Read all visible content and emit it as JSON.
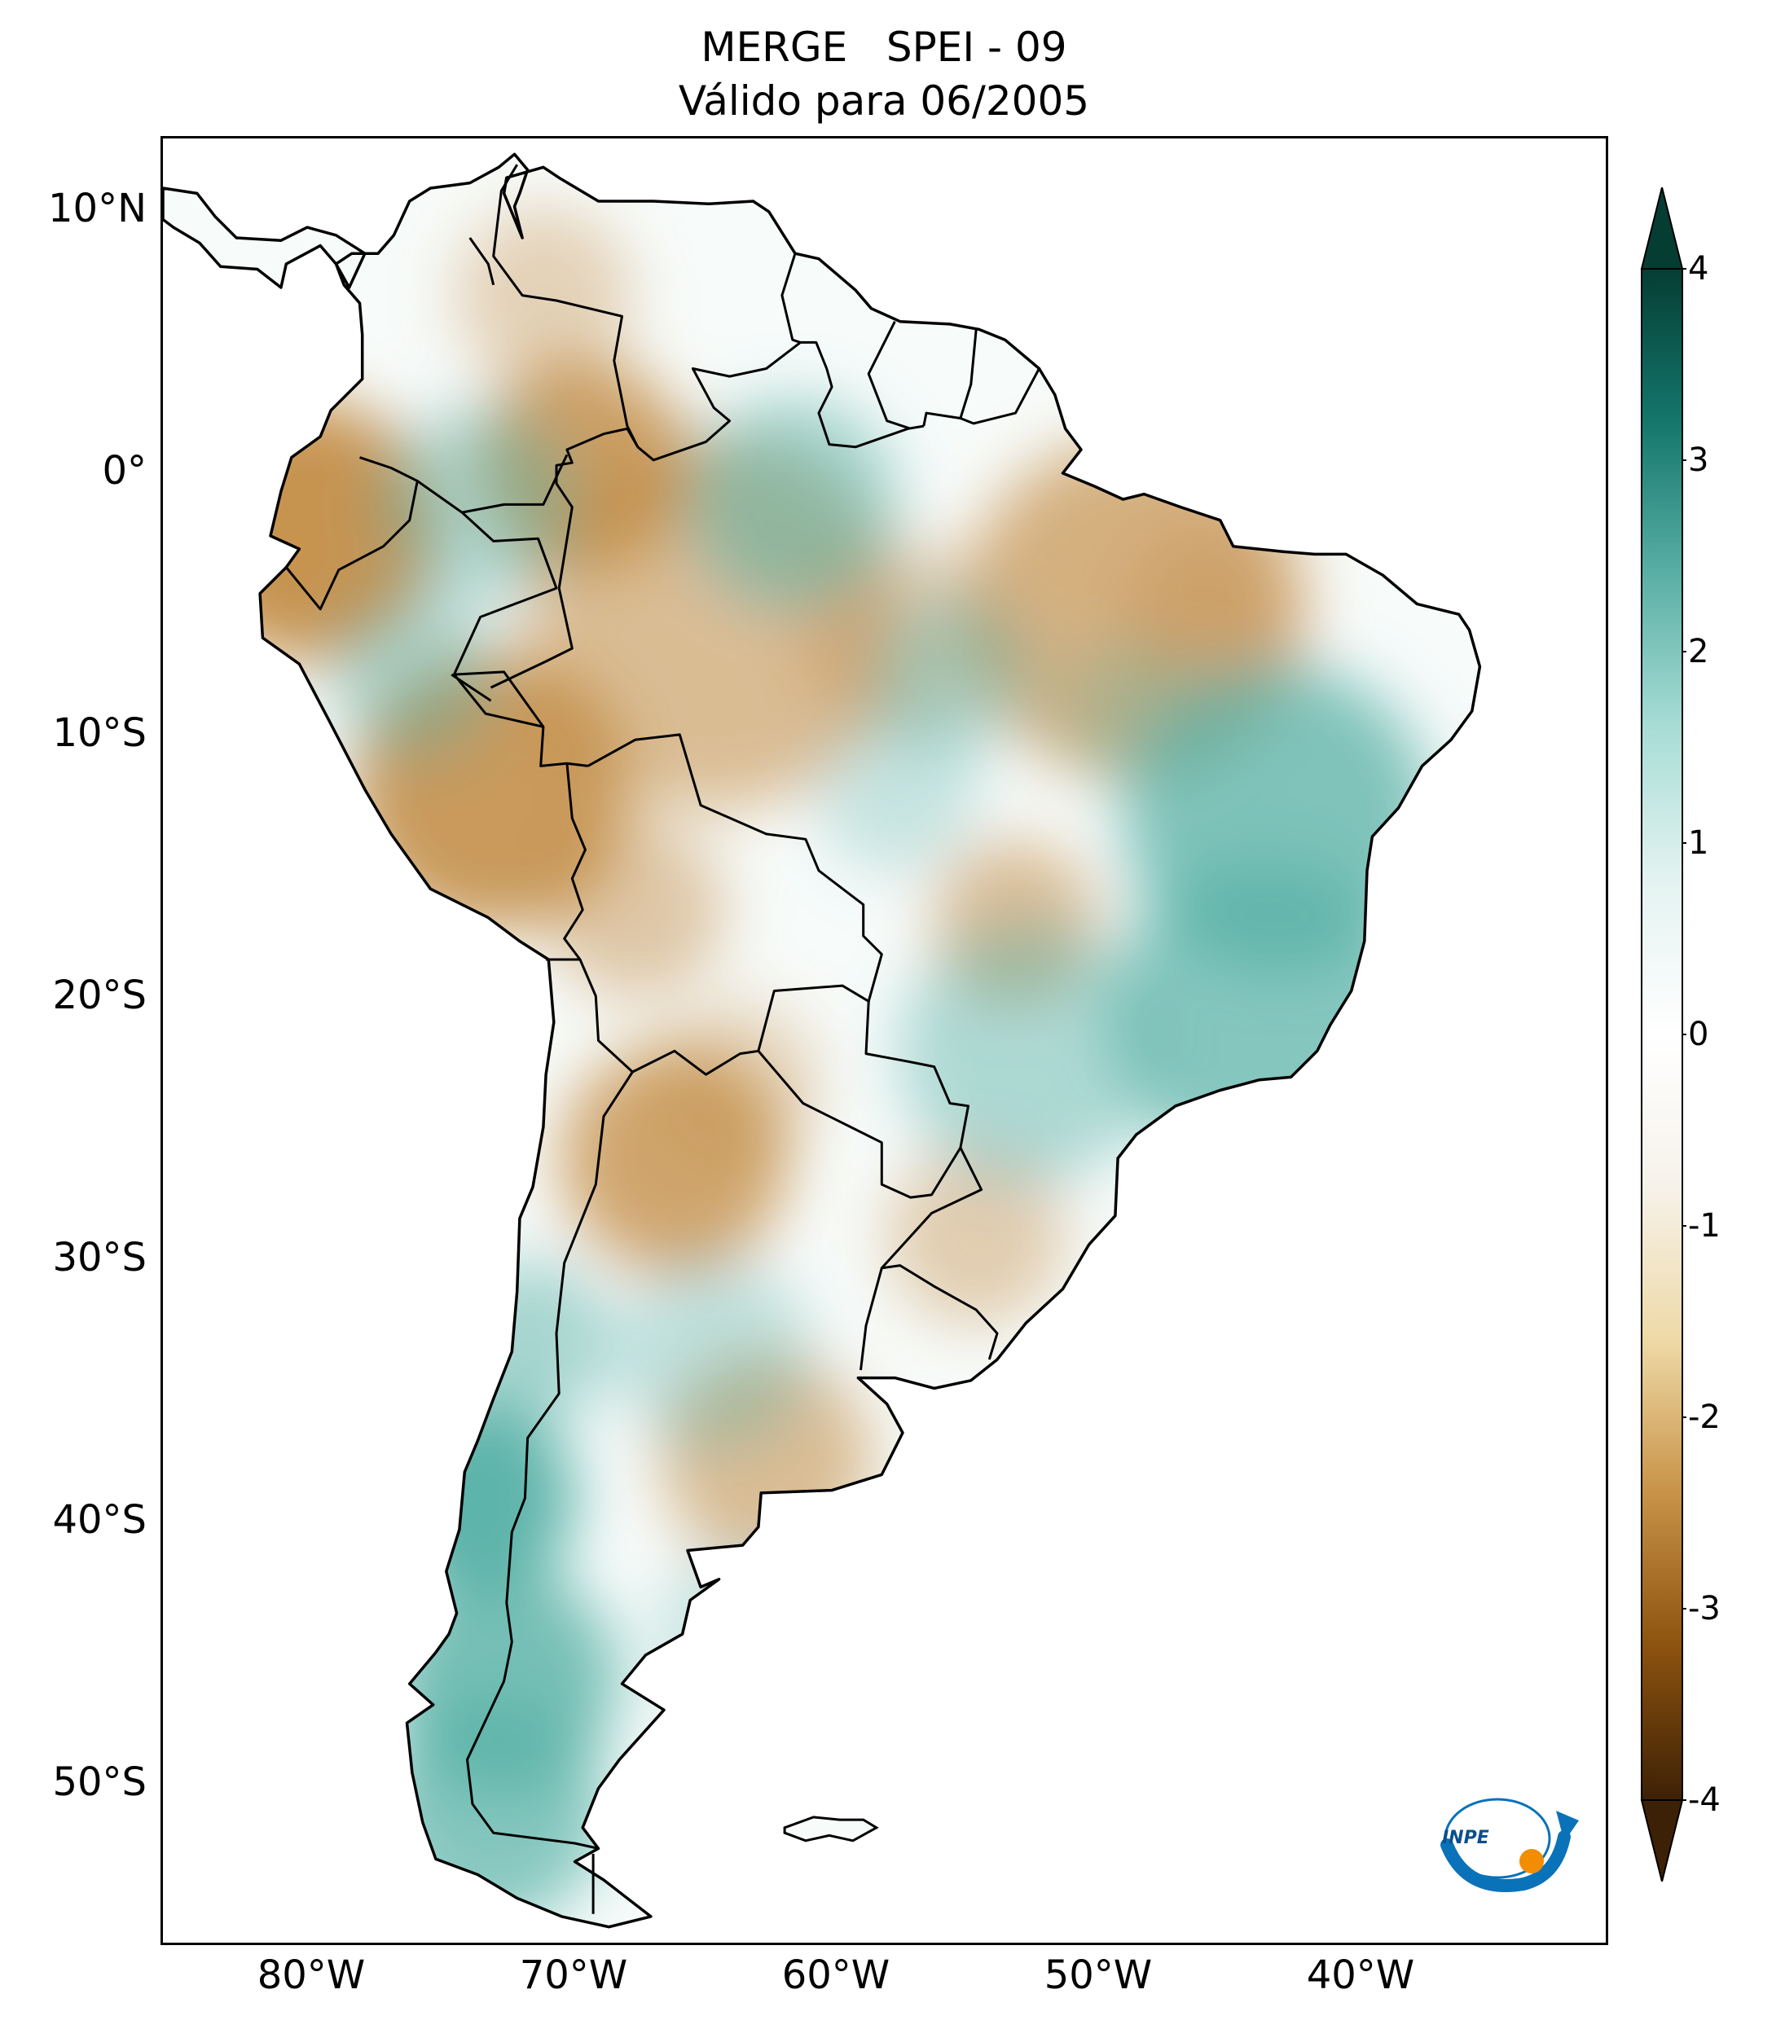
{
  "title_line1": "MERGE   SPEI - 09",
  "title_line2": "Válido para 06/2005",
  "lat_labels": [
    "10°N",
    "0°",
    "10°S",
    "20°S",
    "30°S",
    "40°S",
    "50°S"
  ],
  "lon_labels": [
    "80°W",
    "70°W",
    "60°W",
    "50°W",
    "40°W"
  ],
  "colorbar": {
    "ticks": [
      "4",
      "3",
      "2",
      "1",
      "0",
      "-1",
      "-2",
      "-3",
      "-4"
    ],
    "range": [
      -4,
      4
    ],
    "extend": "both",
    "palette": [
      "#3d2106",
      "#8c520f",
      "#c89247",
      "#eed9a6",
      "#f6f2ea",
      "#ffffff",
      "#e4f3f1",
      "#a8ddd6",
      "#5aafa5",
      "#14776c",
      "#053d33"
    ]
  },
  "map": {
    "lon_range": [
      -85,
      -30
    ],
    "lat_range": [
      -56,
      13
    ],
    "land_base_color": "#f7fbfa",
    "border_color": "#000000",
    "dry_color": "#c1883f",
    "wet_color": "#55b0a5"
  },
  "logo": {
    "text": "INPE",
    "accent_blue": "#0a72b8",
    "accent_orange": "#f28c00"
  }
}
